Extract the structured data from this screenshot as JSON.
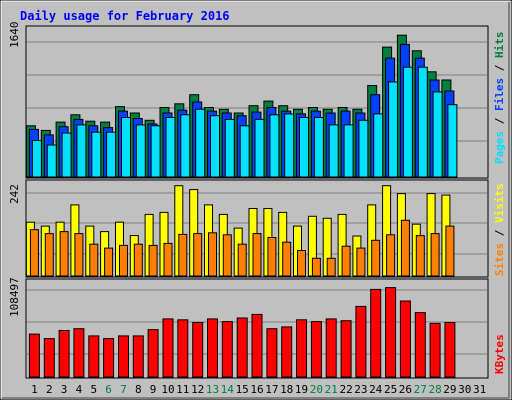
{
  "chart_data": [
    {
      "type": "bar",
      "title": "Daily usage for February 2016",
      "ymax_label": "1640",
      "ylim": [
        0,
        1640
      ],
      "categories": [
        "1",
        "2",
        "3",
        "4",
        "5",
        "6",
        "7",
        "8",
        "9",
        "10",
        "11",
        "12",
        "13",
        "14",
        "15",
        "16",
        "17",
        "18",
        "19",
        "20",
        "21",
        "22",
        "23",
        "24",
        "25",
        "26",
        "27",
        "28",
        "29",
        "30",
        "31"
      ],
      "weekend_days": [
        "6",
        "7",
        "13",
        "14",
        "20",
        "21",
        "27",
        "28"
      ],
      "legend": {
        "placement": "right-vertical",
        "items": [
          "Pages",
          "Files",
          "Hits"
        ],
        "separator": " / "
      },
      "series": [
        {
          "name": "Hits",
          "color": "#008040",
          "values": [
            560,
            510,
            600,
            680,
            610,
            600,
            770,
            700,
            620,
            760,
            800,
            900,
            760,
            740,
            700,
            780,
            830,
            780,
            740,
            760,
            740,
            760,
            740,
            1000,
            1420,
            1550,
            1380,
            1150,
            1060,
            null,
            null
          ]
        },
        {
          "name": "Files",
          "color": "#0040ff",
          "values": [
            520,
            460,
            550,
            630,
            560,
            540,
            720,
            640,
            580,
            700,
            730,
            820,
            720,
            700,
            670,
            710,
            760,
            720,
            690,
            720,
            700,
            720,
            700,
            900,
            1300,
            1450,
            1300,
            1060,
            940,
            null,
            null
          ]
        },
        {
          "name": "Pages",
          "color": "#00e0ff",
          "values": [
            400,
            350,
            480,
            570,
            490,
            490,
            650,
            570,
            560,
            650,
            680,
            740,
            670,
            630,
            560,
            630,
            680,
            690,
            650,
            650,
            570,
            570,
            620,
            690,
            1040,
            1200,
            1200,
            930,
            790,
            null,
            null
          ]
        }
      ]
    },
    {
      "type": "bar",
      "ymax_label": "242",
      "ylim": [
        0,
        242
      ],
      "categories": [
        "1",
        "2",
        "3",
        "4",
        "5",
        "6",
        "7",
        "8",
        "9",
        "10",
        "11",
        "12",
        "13",
        "14",
        "15",
        "16",
        "17",
        "18",
        "19",
        "20",
        "21",
        "22",
        "23",
        "24",
        "25",
        "26",
        "27",
        "28",
        "29",
        "30",
        "31"
      ],
      "legend": {
        "placement": "right-vertical",
        "items": [
          "Sites",
          "Visits"
        ],
        "separator": " / "
      },
      "series": [
        {
          "name": "Visits",
          "color": "#ffff00",
          "values": [
            137,
            127,
            137,
            181,
            127,
            113,
            137,
            103,
            157,
            162,
            230,
            220,
            181,
            157,
            122,
            172,
            172,
            162,
            127,
            152,
            147,
            157,
            102,
            181,
            230,
            210,
            132,
            210,
            206,
            null,
            null
          ]
        },
        {
          "name": "Sites",
          "color": "#ff8000",
          "values": [
            118,
            108,
            113,
            108,
            81,
            71,
            78,
            81,
            78,
            83,
            106,
            108,
            110,
            105,
            81,
            108,
            98,
            86,
            65,
            45,
            45,
            76,
            71,
            91,
            105,
            142,
            103,
            108,
            127,
            null,
            null
          ]
        }
      ]
    },
    {
      "type": "bar",
      "ymax_label": "108497",
      "ylim": [
        0,
        108497
      ],
      "categories": [
        "1",
        "2",
        "3",
        "4",
        "5",
        "6",
        "7",
        "8",
        "9",
        "10",
        "11",
        "12",
        "13",
        "14",
        "15",
        "16",
        "17",
        "18",
        "19",
        "20",
        "21",
        "22",
        "23",
        "24",
        "25",
        "26",
        "27",
        "28",
        "29",
        "30",
        "31"
      ],
      "legend": {
        "placement": "right-vertical",
        "items": [
          "KBytes"
        ],
        "separator": " / "
      },
      "series": [
        {
          "name": "KBytes",
          "color": "#ff0000",
          "values": [
            48000,
            43000,
            52000,
            54000,
            46000,
            43000,
            46000,
            46000,
            53000,
            65000,
            64000,
            61000,
            65000,
            62000,
            66000,
            70000,
            54000,
            56000,
            64000,
            62000,
            65000,
            63000,
            79000,
            98000,
            100000,
            85000,
            72000,
            60000,
            61000,
            null,
            null
          ]
        }
      ]
    }
  ]
}
